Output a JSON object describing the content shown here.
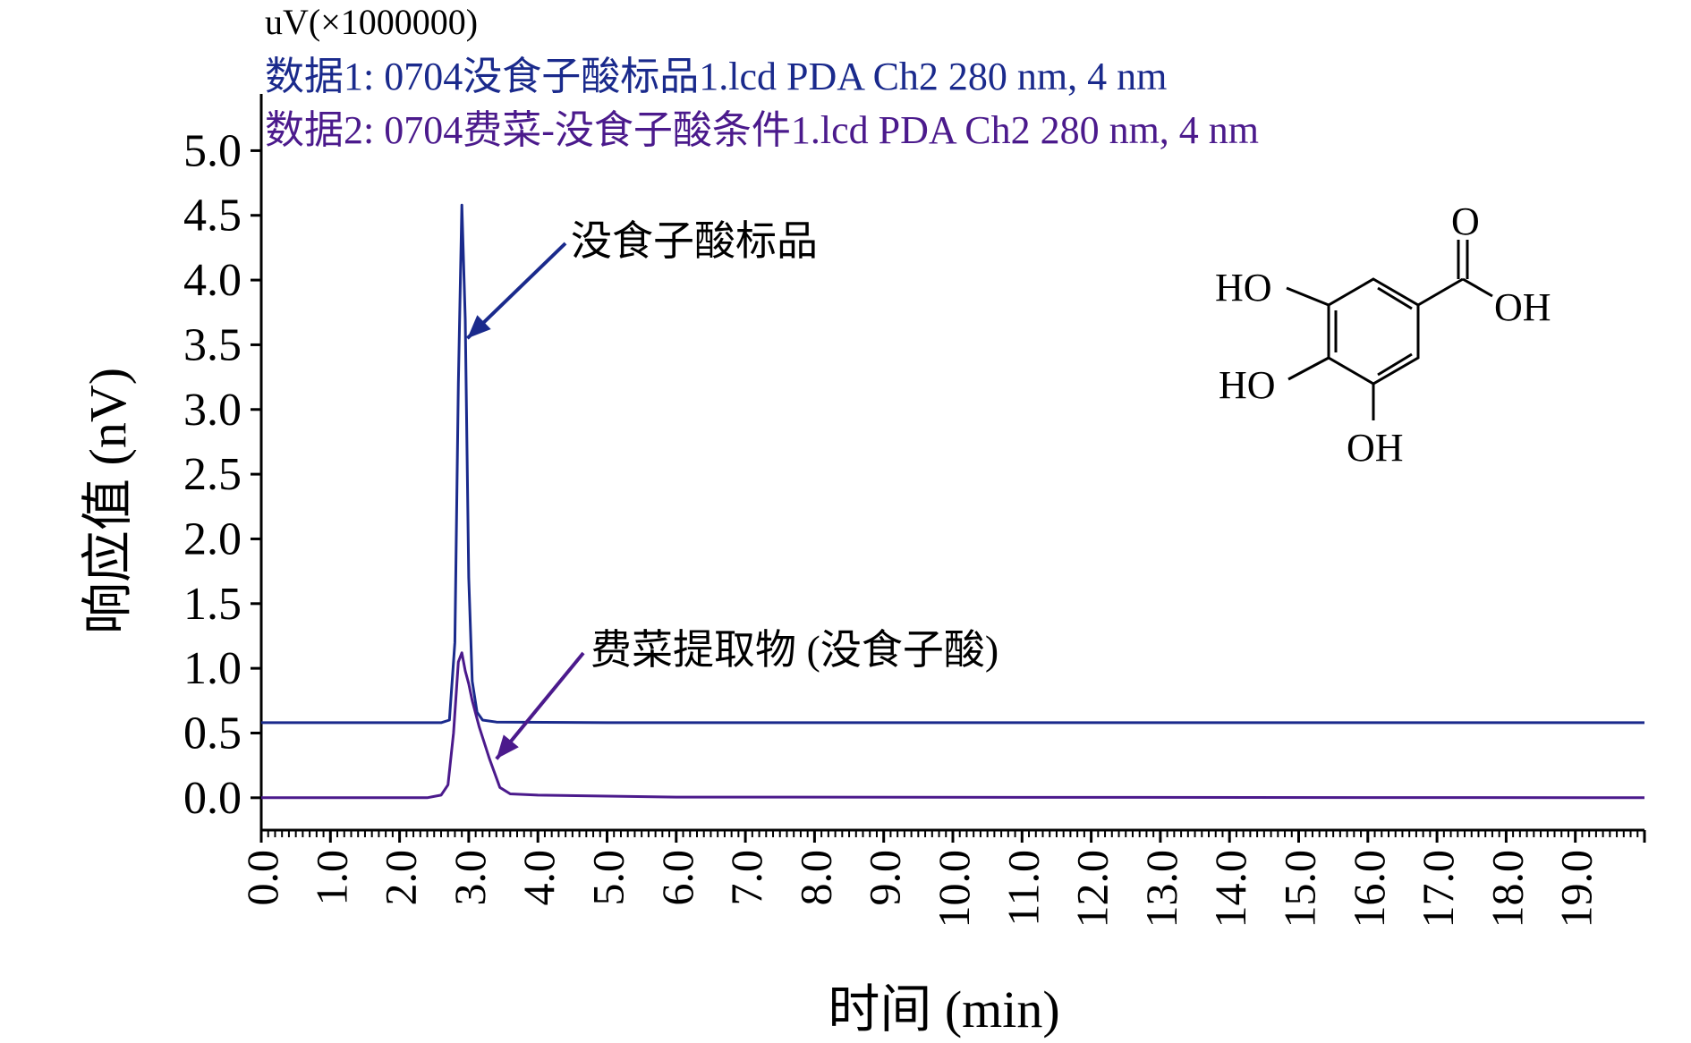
{
  "chart_data": {
    "type": "line",
    "title": "",
    "xlabel": "时间 (min)",
    "ylabel": "响应值 (nV)",
    "unit_label": "uV(×1000000)",
    "xlim": [
      0,
      20
    ],
    "ylim": [
      -0.25,
      5.3
    ],
    "x_ticks": [
      "0.0",
      "1.0",
      "2.0",
      "3.0",
      "4.0",
      "5.0",
      "6.0",
      "7.0",
      "8.0",
      "9.0",
      "10.0",
      "11.0",
      "12.0",
      "13.0",
      "14.0",
      "15.0",
      "16.0",
      "17.0",
      "18.0",
      "19.0"
    ],
    "y_ticks": [
      "0.0",
      "0.5",
      "1.0",
      "1.5",
      "2.0",
      "2.5",
      "3.0",
      "3.5",
      "4.0",
      "4.5",
      "5.0"
    ],
    "legend_position": "top-left",
    "grid": false,
    "series": [
      {
        "name": "数据1: 0704没食子酸标品1.lcd PDA Ch2 280 nm, 4 nm",
        "color": "#1a2a8c",
        "points": [
          [
            0,
            0.58
          ],
          [
            2.6,
            0.58
          ],
          [
            2.72,
            0.6
          ],
          [
            2.8,
            1.2
          ],
          [
            2.85,
            3.2
          ],
          [
            2.9,
            4.58
          ],
          [
            2.95,
            3.7
          ],
          [
            3.0,
            1.7
          ],
          [
            3.05,
            0.9
          ],
          [
            3.12,
            0.66
          ],
          [
            3.2,
            0.6
          ],
          [
            3.4,
            0.585
          ],
          [
            5,
            0.58
          ],
          [
            20,
            0.58
          ]
        ]
      },
      {
        "name": "数据2: 0704费菜-没食子酸条件1.lcd PDA Ch2 280 nm, 4 nm",
        "color": "#4b1a8c",
        "points": [
          [
            0,
            0.0
          ],
          [
            2.4,
            0.0
          ],
          [
            2.6,
            0.02
          ],
          [
            2.7,
            0.1
          ],
          [
            2.78,
            0.5
          ],
          [
            2.85,
            1.05
          ],
          [
            2.9,
            1.12
          ],
          [
            2.95,
            0.98
          ],
          [
            3.0,
            0.88
          ],
          [
            3.05,
            0.75
          ],
          [
            3.15,
            0.55
          ],
          [
            3.3,
            0.3
          ],
          [
            3.45,
            0.08
          ],
          [
            3.6,
            0.03
          ],
          [
            4,
            0.02
          ],
          [
            6,
            0.005
          ],
          [
            20,
            0.0
          ]
        ]
      }
    ],
    "annotations": [
      {
        "text": "没食子酸标品",
        "target": [
          2.98,
          3.55
        ]
      },
      {
        "text": "费菜提取物 (没食子酸)",
        "target": [
          3.4,
          0.3
        ]
      }
    ],
    "structure_labels": [
      "O",
      "HO",
      "OH",
      "HO",
      "OH"
    ]
  }
}
